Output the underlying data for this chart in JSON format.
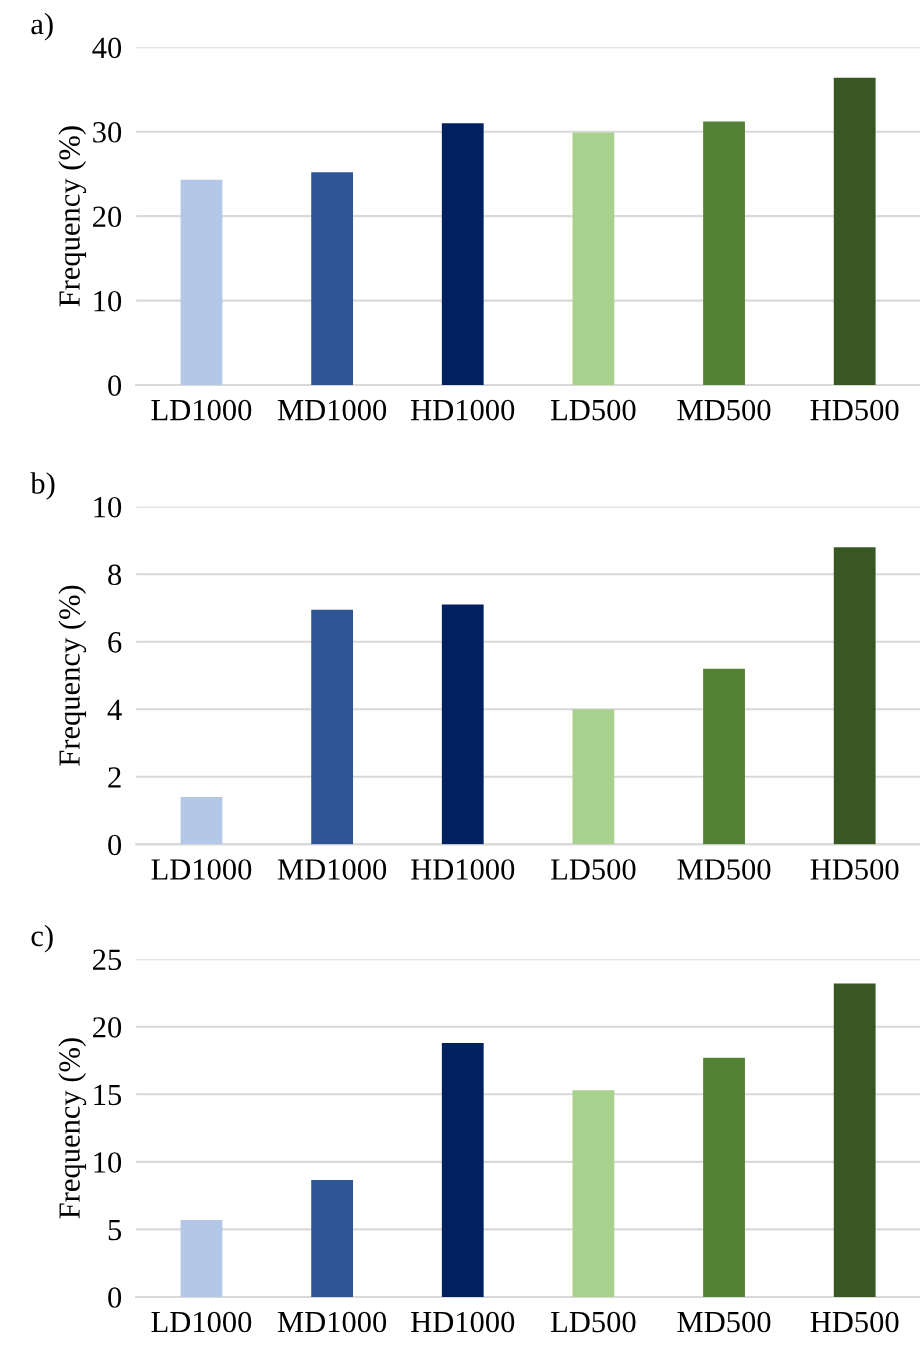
{
  "chart_data": [
    {
      "type": "bar",
      "title": "a)",
      "ylabel": "Frequency (%)",
      "categories": [
        "LD1000",
        "MD1000",
        "HD1000",
        "LD500",
        "MD500",
        "HD500"
      ],
      "values": [
        24.3,
        25.2,
        31.0,
        29.9,
        31.2,
        36.4
      ],
      "colors": [
        "#b4c7e7",
        "#2f5597",
        "#002060",
        "#a9d18e",
        "#548235",
        "#385723"
      ],
      "ylim": [
        0,
        40
      ],
      "yticks": [
        0,
        10,
        20,
        30,
        40
      ],
      "grid": "y"
    },
    {
      "type": "bar",
      "title": "b)",
      "ylabel": "Frequency (%)",
      "categories": [
        "LD1000",
        "MD1000",
        "HD1000",
        "LD500",
        "MD500",
        "HD500"
      ],
      "values": [
        1.4,
        6.95,
        7.1,
        4.0,
        5.2,
        8.8
      ],
      "colors": [
        "#b4c7e7",
        "#2f5597",
        "#002060",
        "#a9d18e",
        "#548235",
        "#385723"
      ],
      "ylim": [
        0,
        10
      ],
      "yticks": [
        0,
        2,
        4,
        6,
        8,
        10
      ],
      "grid": "y"
    },
    {
      "type": "bar",
      "title": "c)",
      "ylabel": "Frequency (%)",
      "categories": [
        "LD1000",
        "MD1000",
        "HD1000",
        "LD500",
        "MD500",
        "HD500"
      ],
      "values": [
        5.7,
        8.65,
        18.8,
        15.3,
        17.7,
        23.2
      ],
      "colors": [
        "#b4c7e7",
        "#2f5597",
        "#002060",
        "#a9d18e",
        "#548235",
        "#385723"
      ],
      "ylim": [
        0,
        25
      ],
      "yticks": [
        0,
        5,
        10,
        15,
        20,
        25
      ],
      "grid": "y"
    }
  ]
}
